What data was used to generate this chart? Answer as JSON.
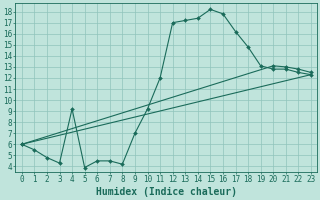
{
  "title": "",
  "xlabel": "Humidex (Indice chaleur)",
  "ylabel": "",
  "bg_color": "#c0e4dc",
  "grid_color": "#90c4bc",
  "line_color": "#1a6b5a",
  "xlim": [
    -0.5,
    23.5
  ],
  "ylim": [
    3.5,
    18.8
  ],
  "xticks": [
    0,
    1,
    2,
    3,
    4,
    5,
    6,
    7,
    8,
    9,
    10,
    11,
    12,
    13,
    14,
    15,
    16,
    17,
    18,
    19,
    20,
    21,
    22,
    23
  ],
  "yticks": [
    4,
    5,
    6,
    7,
    8,
    9,
    10,
    11,
    12,
    13,
    14,
    15,
    16,
    17,
    18
  ],
  "line1_x": [
    0,
    1,
    2,
    3,
    4,
    5,
    6,
    7,
    8,
    9,
    10,
    11,
    12,
    13,
    14,
    15,
    16,
    17,
    18,
    19,
    20,
    21,
    22,
    23
  ],
  "line1_y": [
    6.0,
    5.5,
    4.8,
    4.3,
    9.2,
    3.9,
    4.5,
    4.5,
    4.2,
    7.0,
    9.2,
    12.0,
    17.0,
    17.2,
    17.4,
    18.2,
    17.8,
    16.2,
    14.8,
    13.1,
    12.8,
    12.8,
    12.5,
    12.3
  ],
  "line2_x": [
    0,
    23
  ],
  "line2_y": [
    6.0,
    12.3
  ],
  "line3_x": [
    0,
    20,
    21,
    22,
    23
  ],
  "line3_y": [
    6.0,
    13.1,
    13.0,
    12.8,
    12.5
  ],
  "fontsize_xlabel": 7,
  "fontsize_ticks": 5.5
}
